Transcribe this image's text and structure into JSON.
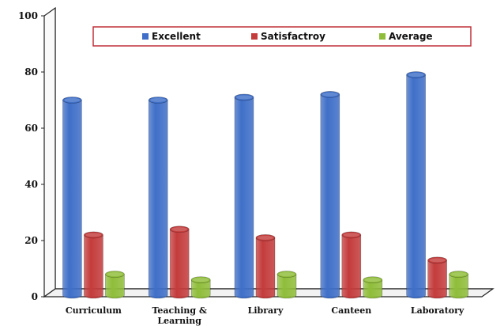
{
  "chart_data": {
    "type": "bar",
    "categories": [
      [
        "Curriculum"
      ],
      [
        "Teaching &",
        "Learning"
      ],
      [
        "Library"
      ],
      [
        "Canteen"
      ],
      [
        "Laboratory"
      ]
    ],
    "series": [
      {
        "name": "Excellent",
        "values": [
          70,
          70,
          71,
          72,
          79
        ]
      },
      {
        "name": "Satisfactroy",
        "values": [
          22,
          24,
          21,
          22,
          13
        ]
      },
      {
        "name": "Average",
        "values": [
          8,
          6,
          8,
          6,
          8
        ]
      }
    ],
    "ylim": [
      0,
      100
    ],
    "yticks": [
      "0",
      "20",
      "40",
      "60",
      "80",
      "100"
    ],
    "legend_position": "top",
    "colors": {
      "excellent": "#3f6fc8",
      "satisfactroy": "#c43c3c",
      "average": "#8fbd3a",
      "legend_border": "#c0303a"
    }
  }
}
